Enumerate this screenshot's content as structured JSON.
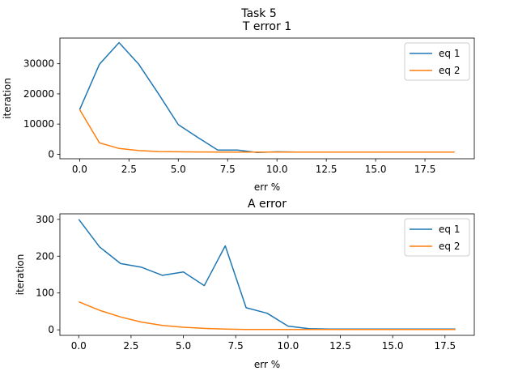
{
  "figure_title": "Task 5",
  "chart_data": [
    {
      "type": "line",
      "title": "T error 1",
      "xlabel": "err %",
      "ylabel": "iteration",
      "xlim": [
        -1.0,
        20.0
      ],
      "ylim": [
        -1500,
        38500
      ],
      "xticks": [
        0.0,
        2.5,
        5.0,
        7.5,
        10.0,
        12.5,
        15.0,
        17.5
      ],
      "xtick_labels": [
        "0.0",
        "2.5",
        "5.0",
        "7.5",
        "10.0",
        "12.5",
        "15.0",
        "17.5"
      ],
      "yticks": [
        0,
        10000,
        20000,
        30000
      ],
      "ytick_labels": [
        "0",
        "10000",
        "20000",
        "30000"
      ],
      "legend_position": "top-right",
      "series": [
        {
          "name": "eq 1",
          "color": "#1f77b4",
          "x": [
            0,
            1,
            2,
            3,
            4,
            5,
            6,
            7,
            8,
            9,
            10,
            11,
            12,
            13,
            14,
            15,
            16,
            17,
            18,
            19
          ],
          "values": [
            14800,
            29800,
            37000,
            29800,
            20000,
            9800,
            5500,
            1400,
            1400,
            600,
            800,
            700,
            700,
            700,
            700,
            700,
            700,
            700,
            700,
            700
          ]
        },
        {
          "name": "eq 2",
          "color": "#ff7f0e",
          "x": [
            0,
            1,
            2,
            3,
            4,
            5,
            6,
            7,
            8,
            9,
            10,
            11,
            12,
            13,
            14,
            15,
            16,
            17,
            18,
            19
          ],
          "values": [
            14800,
            3800,
            1900,
            1200,
            900,
            800,
            750,
            700,
            700,
            700,
            700,
            700,
            700,
            700,
            700,
            700,
            700,
            700,
            700,
            700
          ]
        }
      ]
    },
    {
      "type": "line",
      "title": "A error",
      "xlabel": "err %",
      "ylabel": "iteration",
      "xlim": [
        -0.9,
        18.9
      ],
      "ylim": [
        -15,
        315
      ],
      "xticks": [
        0.0,
        2.5,
        5.0,
        7.5,
        10.0,
        12.5,
        15.0,
        17.5
      ],
      "xtick_labels": [
        "0.0",
        "2.5",
        "5.0",
        "7.5",
        "10.0",
        "12.5",
        "15.0",
        "17.5"
      ],
      "yticks": [
        0,
        100,
        200,
        300
      ],
      "ytick_labels": [
        "0",
        "100",
        "200",
        "300"
      ],
      "legend_position": "top-right",
      "series": [
        {
          "name": "eq 1",
          "color": "#1f77b4",
          "x": [
            0,
            1,
            2,
            3,
            4,
            5,
            6,
            7,
            8,
            9,
            10,
            11,
            12,
            13,
            14,
            15,
            16,
            17,
            18
          ],
          "values": [
            300,
            225,
            180,
            170,
            148,
            157,
            120,
            228,
            60,
            45,
            10,
            3,
            2,
            2,
            2,
            2,
            2,
            2,
            2
          ]
        },
        {
          "name": "eq 2",
          "color": "#ff7f0e",
          "x": [
            0,
            1,
            2,
            3,
            4,
            5,
            6,
            7,
            8,
            9,
            10,
            11,
            12,
            13,
            14,
            15,
            16,
            17,
            18
          ],
          "values": [
            76,
            53,
            35,
            21,
            12,
            7,
            4,
            2,
            1,
            1,
            1,
            1,
            1,
            1,
            1,
            1,
            1,
            1,
            1
          ]
        }
      ]
    }
  ]
}
